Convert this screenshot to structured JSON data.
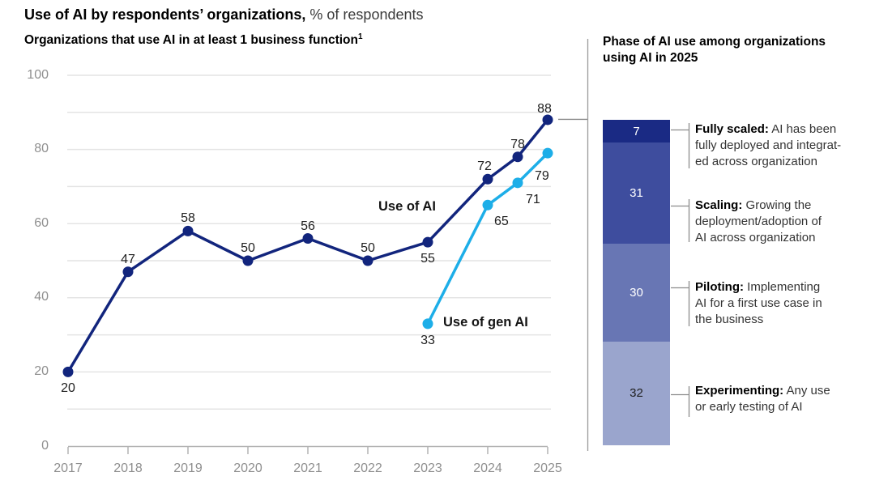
{
  "header": {
    "title_bold": "Use of AI by respondents’ organizations,",
    "title_regular": "% of respondents"
  },
  "left_chart": {
    "subtitle": "Organizations that use AI in at least 1 business function",
    "footnote_superscript": "1"
  },
  "right_panel": {
    "title_line1": "Phase of AI use among organizations",
    "title_line2": "using AI in 2025"
  },
  "chart_data": [
    {
      "type": "line",
      "title": "Organizations that use AI in at least 1 business function",
      "unit": "% of respondents",
      "x_ticks": [
        2017,
        2018,
        2019,
        2020,
        2021,
        2022,
        2023,
        2024,
        2025
      ],
      "y_ticks": [
        0,
        20,
        40,
        60,
        80,
        100
      ],
      "ylim": [
        0,
        100
      ],
      "grid_step": 10,
      "grid_on": true,
      "style": {
        "grid_color": "#e4e4e4",
        "axis_color": "#b3b3b3",
        "tick_label_color": "#8f8f8f",
        "data_label_color": "#1f1f1f",
        "connector_color": "#8c8c8c",
        "divider_color": "#9a9a9a"
      },
      "series": [
        {
          "name": "Use of AI",
          "color": "#12257d",
          "points": [
            {
              "x": 2017,
              "y": 20,
              "label": "20",
              "label_align": "center",
              "label_offset": [
                0,
                12
              ]
            },
            {
              "x": 2018,
              "y": 47,
              "label": "47",
              "label_align": "center",
              "label_offset": [
                0,
                -24
              ]
            },
            {
              "x": 2019,
              "y": 58,
              "label": "58",
              "label_align": "center",
              "label_offset": [
                0,
                -24
              ]
            },
            {
              "x": 2020,
              "y": 50,
              "label": "50",
              "label_align": "center",
              "label_offset": [
                0,
                -24
              ]
            },
            {
              "x": 2021,
              "y": 56,
              "label": "56",
              "label_align": "center",
              "label_offset": [
                0,
                -24
              ]
            },
            {
              "x": 2022,
              "y": 50,
              "label": "50",
              "label_align": "center",
              "label_offset": [
                0,
                -24
              ]
            },
            {
              "x": 2023,
              "y": 55,
              "label": "55",
              "label_align": "center",
              "label_offset": [
                0,
                12
              ]
            },
            {
              "x": 2024,
              "y": 72,
              "label": "72",
              "label_align": "center",
              "label_offset": [
                -4,
                -24
              ]
            },
            {
              "x": 2024.5,
              "y": 78,
              "label": "78",
              "label_align": "center",
              "label_offset": [
                0,
                -24
              ]
            },
            {
              "x": 2025,
              "y": 88,
              "label": "88",
              "label_align": "center",
              "label_offset": [
                -4,
                -22
              ]
            }
          ]
        },
        {
          "name": "Use of gen AI",
          "color": "#1daee8",
          "points": [
            {
              "x": 2023,
              "y": 33,
              "label": "33",
              "label_align": "center",
              "label_offset": [
                0,
                12
              ]
            },
            {
              "x": 2024,
              "y": 65,
              "label": "65",
              "label_align": "left",
              "label_offset": [
                8,
                12
              ]
            },
            {
              "x": 2024.5,
              "y": 71,
              "label": "71",
              "label_align": "left",
              "label_offset": [
                10,
                12
              ]
            },
            {
              "x": 2025,
              "y": 79,
              "label": "79",
              "label_align": "left",
              "label_offset": [
                -16,
                20
              ]
            }
          ]
        }
      ]
    },
    {
      "type": "bar",
      "subtype": "stacked-single-column",
      "title": "Phase of AI use among organizations using AI in 2025",
      "segments": [
        {
          "value": 7,
          "phase": "Fully scaled",
          "color": "#1a2a84",
          "value_color": "#ffffff",
          "label_bold": "Fully scaled:",
          "label_lines": [
            "Fully scaled: AI has been",
            "fully deployed and integrat-",
            "ed across organization"
          ]
        },
        {
          "value": 31,
          "phase": "Scaling",
          "color": "#3e4d9e",
          "value_color": "#ffffff",
          "label_bold": "Scaling:",
          "label_lines": [
            "Scaling: Growing the",
            "deployment/adoption of",
            "AI across organization"
          ]
        },
        {
          "value": 30,
          "phase": "Piloting",
          "color": "#6876b4",
          "value_color": "#ffffff",
          "label_bold": "Piloting:",
          "label_lines": [
            "Piloting: Implementing",
            "AI for a first use case in",
            "the business"
          ]
        },
        {
          "value": 32,
          "phase": "Experimenting",
          "color": "#9aa5cd",
          "value_color": "#1f1f1f",
          "label_bold": "Experimenting:",
          "label_lines": [
            "Experimenting: Any use",
            "or early testing of AI"
          ]
        }
      ]
    }
  ]
}
